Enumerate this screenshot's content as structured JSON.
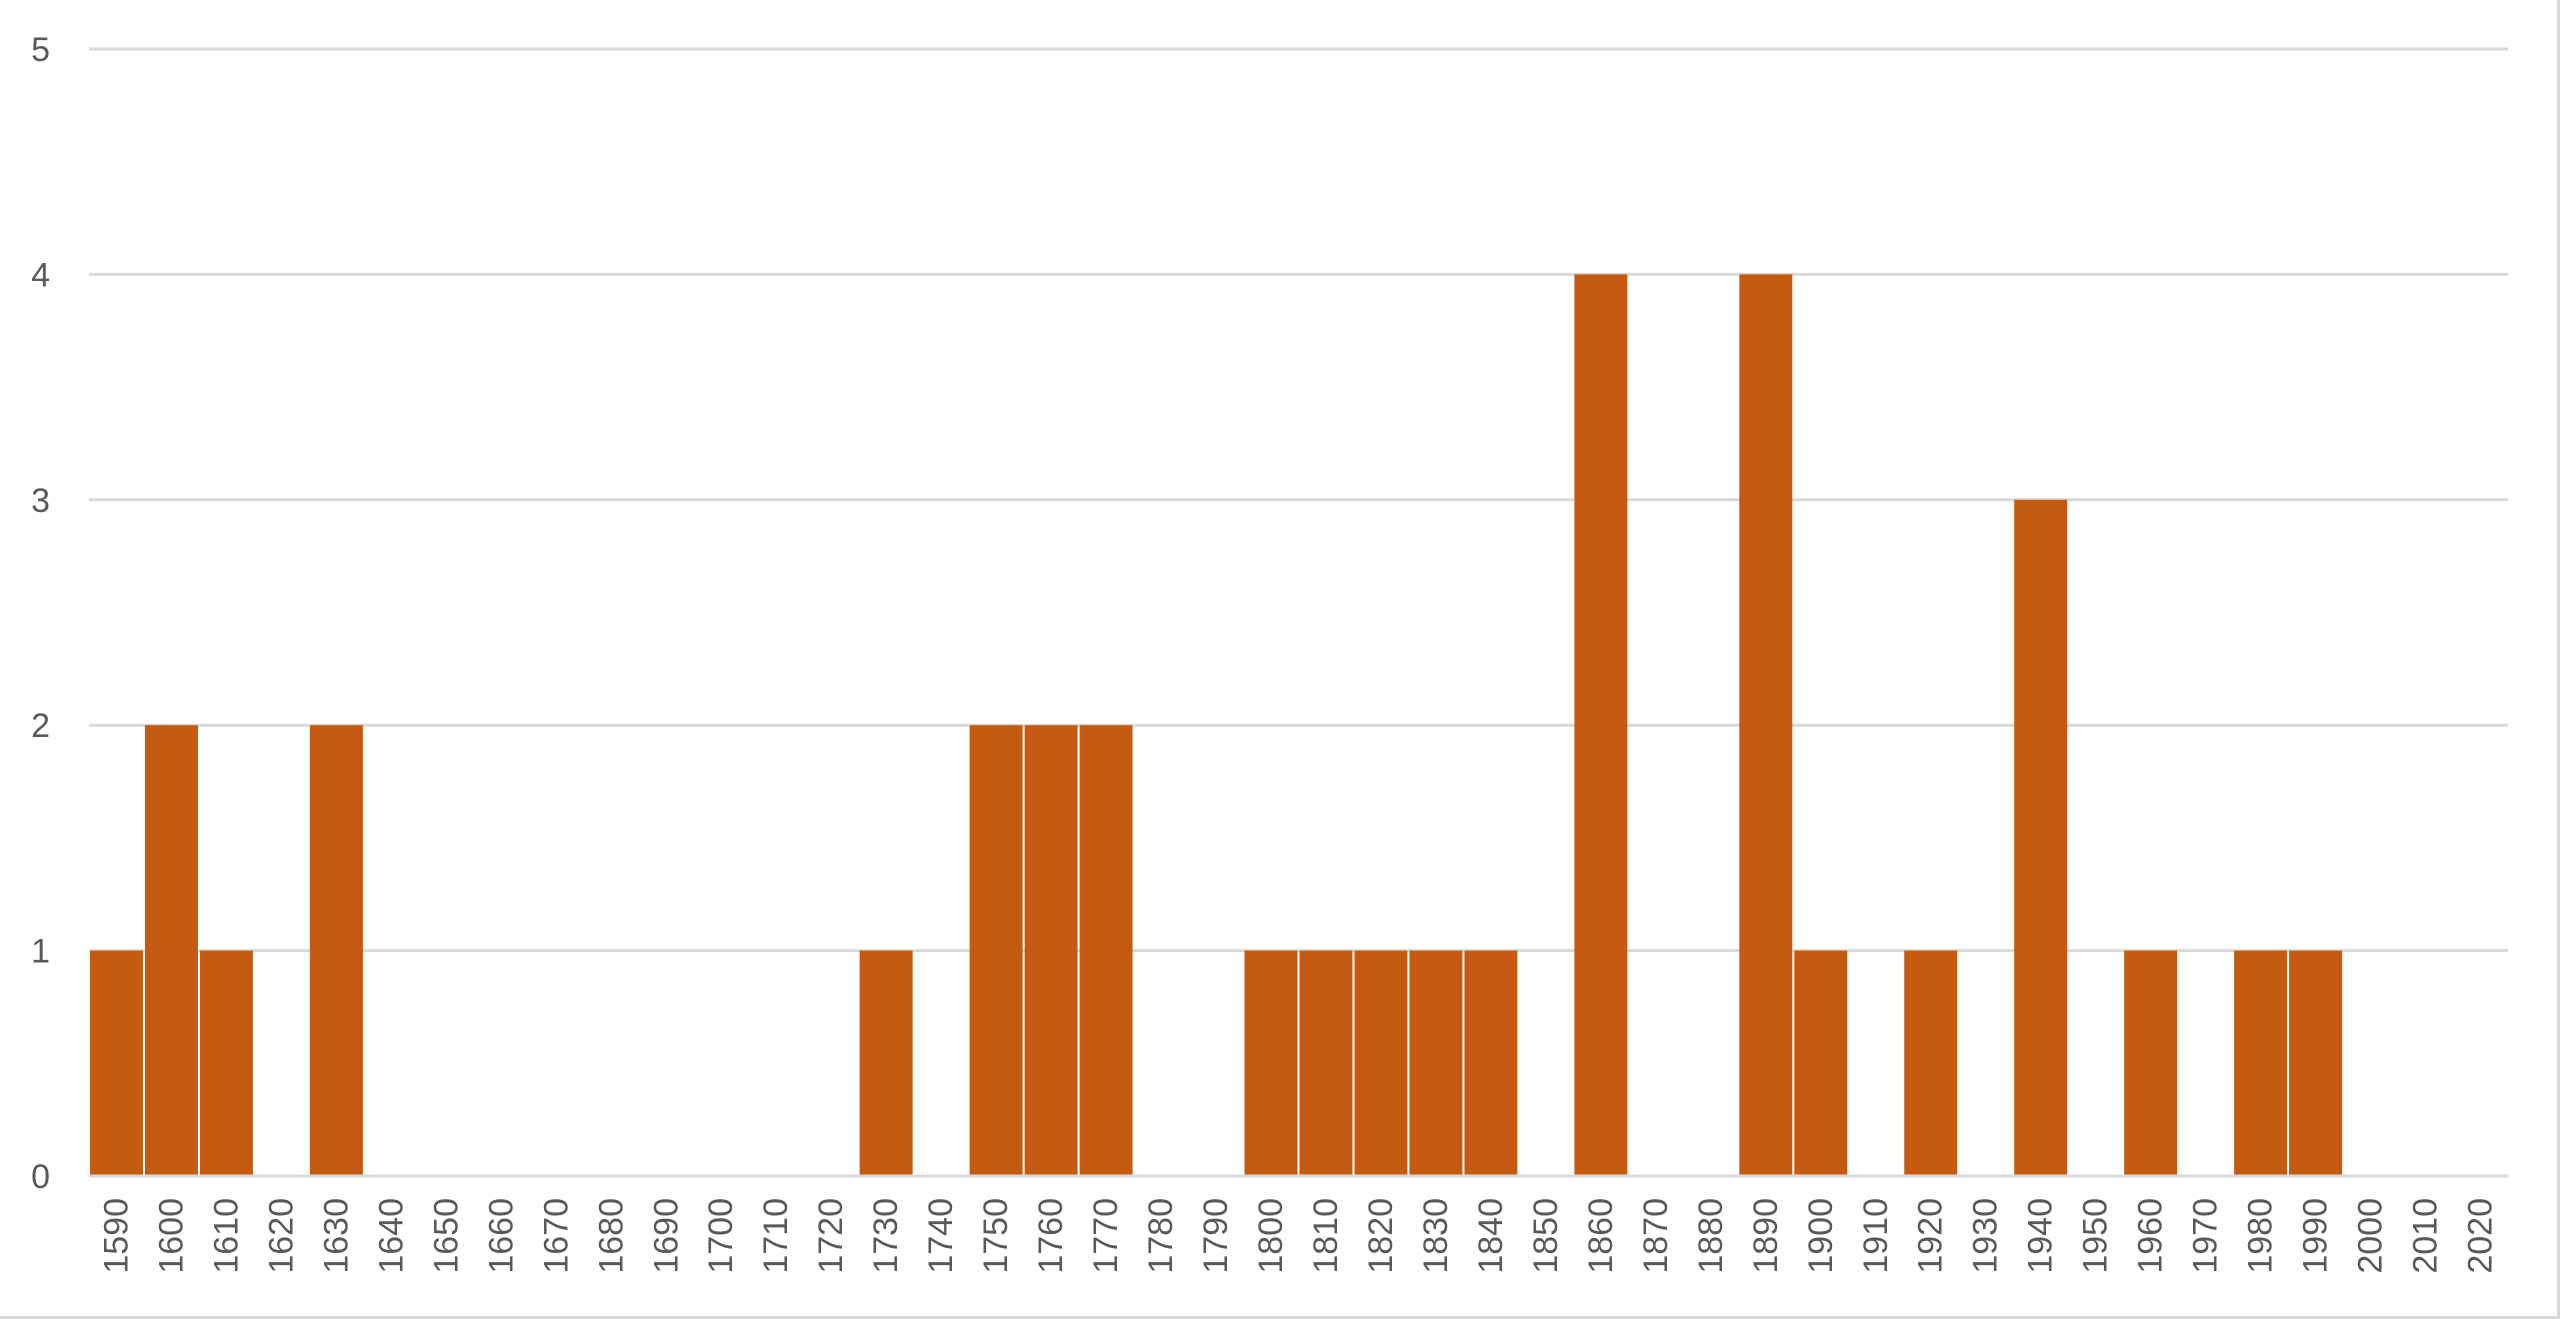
{
  "chart_data": {
    "type": "bar",
    "title": "",
    "xlabel": "",
    "ylabel": "",
    "ylim": [
      0,
      5
    ],
    "yticks": [
      "0",
      "1",
      "2",
      "3",
      "4",
      "5"
    ],
    "grid": true,
    "legend": "none",
    "colors": {
      "bar": "#C55A11",
      "grid": "#D9D9D9",
      "tick_text": "#595959"
    },
    "categories": [
      "1590",
      "1600",
      "1610",
      "1620",
      "1630",
      "1640",
      "1650",
      "1660",
      "1670",
      "1680",
      "1690",
      "1700",
      "1710",
      "1720",
      "1730",
      "1740",
      "1750",
      "1760",
      "1770",
      "1780",
      "1790",
      "1800",
      "1810",
      "1820",
      "1830",
      "1840",
      "1850",
      "1860",
      "1870",
      "1880",
      "1890",
      "1900",
      "1910",
      "1920",
      "1930",
      "1940",
      "1950",
      "1960",
      "1970",
      "1980",
      "1990",
      "2000",
      "2010",
      "2020"
    ],
    "values": [
      1,
      2,
      1,
      0,
      2,
      0,
      0,
      0,
      0,
      0,
      0,
      0,
      0,
      0,
      1,
      0,
      2,
      2,
      2,
      0,
      0,
      1,
      1,
      1,
      1,
      1,
      0,
      4,
      0,
      0,
      4,
      1,
      0,
      1,
      0,
      3,
      0,
      1,
      0,
      1,
      1,
      0,
      0,
      0
    ]
  }
}
